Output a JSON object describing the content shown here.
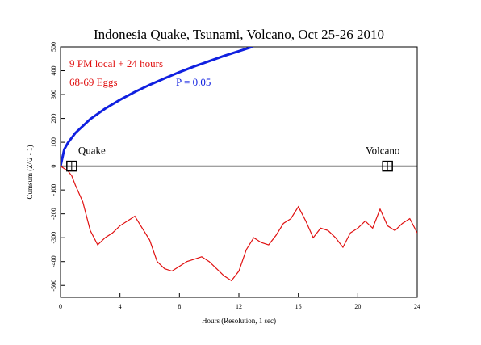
{
  "chart_data": {
    "type": "line",
    "title": "Indonesia Quake, Tsunami, Volcano, Oct 25-26 2010",
    "xlabel": "Hours (Resolution, 1 sec)",
    "ylabel": "Cumsum (Z^2 - 1)",
    "annotations": [
      "9 PM local + 24 hours",
      "68-69 Eggs",
      "P = 0.05"
    ],
    "xlim": [
      0,
      24
    ],
    "xticks": [
      0,
      4,
      8,
      12,
      16,
      20,
      24
    ],
    "ylim": [
      -550,
      500
    ],
    "yticks": [
      -500,
      -400,
      -300,
      -200,
      -100,
      0,
      100,
      200,
      300,
      400,
      500
    ],
    "zero_line": true,
    "series": [
      {
        "color": "#e01010",
        "x": [
          0,
          0.25,
          0.5,
          0.75,
          1,
          1.5,
          2,
          2.5,
          3,
          3.5,
          4,
          4.5,
          5,
          5.5,
          6,
          6.5,
          7,
          7.5,
          8,
          8.5,
          9,
          9.5,
          10,
          10.5,
          11,
          11.5,
          12,
          12.5,
          13,
          13.5,
          14,
          14.5,
          15,
          15.5,
          16,
          16.5,
          17,
          17.5,
          18,
          18.5,
          19,
          19.5,
          20,
          20.5,
          21,
          21.5,
          22,
          22.5,
          23,
          23.5,
          24
        ],
        "values": [
          0,
          -10,
          -20,
          -40,
          -80,
          -150,
          -270,
          -330,
          -300,
          -280,
          -250,
          -230,
          -210,
          -260,
          -310,
          -400,
          -430,
          -440,
          -420,
          -400,
          -390,
          -380,
          -400,
          -430,
          -460,
          -480,
          -440,
          -350,
          -300,
          -320,
          -330,
          -290,
          -240,
          -220,
          -170,
          -230,
          -300,
          -260,
          -270,
          -300,
          -340,
          -280,
          -260,
          -230,
          -260,
          -180,
          -250,
          -270,
          -240,
          -220,
          -280
        ]
      },
      {
        "color": "#1020e0",
        "x": [
          0,
          0.25,
          0.5,
          1,
          2,
          3,
          4,
          5,
          6,
          7,
          8,
          9,
          10,
          11,
          12,
          12.9
        ],
        "values": [
          0,
          70,
          98,
          139,
          197,
          241,
          278,
          311,
          341,
          368,
          394,
          418,
          440,
          462,
          482,
          500
        ]
      }
    ],
    "events": [
      {
        "label": "Quake",
        "x": 0.75
      },
      {
        "label": "Volcano",
        "x": 22
      }
    ]
  }
}
